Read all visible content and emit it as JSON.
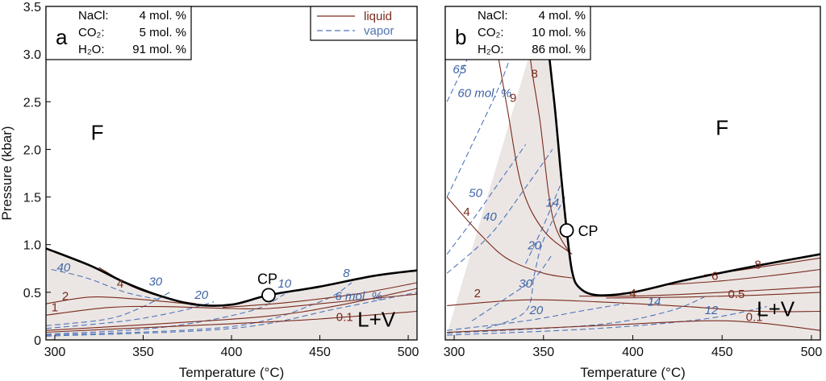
{
  "colors": {
    "liquid": "#7a2a1c",
    "vapor": "#4f74b8",
    "phase_boundary": "#000000",
    "two_phase_fill": "#ebe6e4"
  },
  "chart_data": [
    {
      "type": "line",
      "panel_letter": "a",
      "ylabel": "Pressure (kbar)",
      "xlabel": "Temperature (°C)",
      "xlim": [
        295,
        505
      ],
      "ylim": [
        0,
        3.5
      ],
      "xticks": [
        "300",
        "350",
        "400",
        "450",
        "500"
      ],
      "yticks": [
        "0",
        "0.5",
        "1.0",
        "1.5",
        "2.0",
        "2.5",
        "3.0",
        "3.5"
      ],
      "composition": [
        {
          "name": "NaCl:",
          "value": "4 mol. %"
        },
        {
          "name": "CO₂:",
          "value": "5 mol. %"
        },
        {
          "name": "H₂O:",
          "value": "91 mol. %"
        }
      ],
      "legend": {
        "position": "top-right",
        "entries": [
          {
            "label": "liquid",
            "style": "solid"
          },
          {
            "label": "vapor",
            "style": "dashed"
          }
        ]
      },
      "regions": [
        {
          "label": "F",
          "x": 324,
          "y": 2.1
        },
        {
          "label": "L+V",
          "x": 482,
          "y": 0.14
        }
      ],
      "critical_point": {
        "label": "CP",
        "x": 421,
        "y": 0.47
      },
      "phase_boundary": [
        [
          295,
          0.96
        ],
        [
          320,
          0.78
        ],
        [
          340,
          0.6
        ],
        [
          360,
          0.46
        ],
        [
          380,
          0.37
        ],
        [
          400,
          0.37
        ],
        [
          421,
          0.47
        ],
        [
          450,
          0.56
        ],
        [
          480,
          0.67
        ],
        [
          505,
          0.73
        ]
      ],
      "liquid_isopleths": [
        {
          "label": "1",
          "label_at": [
            300,
            0.3
          ],
          "points": [
            [
              295,
              0.26
            ],
            [
              330,
              0.34
            ],
            [
              360,
              0.35
            ],
            [
              400,
              0.33
            ],
            [
              421,
              0.33
            ],
            [
              450,
              0.38
            ],
            [
              505,
              0.48
            ]
          ]
        },
        {
          "label": "2",
          "label_at": [
            306,
            0.42
          ],
          "points": [
            [
              295,
              0.38
            ],
            [
              320,
              0.45
            ],
            [
              345,
              0.43
            ],
            [
              375,
              0.38
            ]
          ]
        },
        {
          "label": "4",
          "label_at": [
            337,
            0.55
          ],
          "points": [
            [
              325,
              0.76
            ],
            [
              345,
              0.55
            ],
            [
              365,
              0.43
            ],
            [
              380,
              0.38
            ]
          ]
        },
        {
          "label": "0.1",
          "label_at": [
            464,
            0.2
          ],
          "points": [
            [
              295,
              0.08
            ],
            [
              340,
              0.12
            ],
            [
              400,
              0.17
            ],
            [
              450,
              0.22
            ],
            [
              505,
              0.3
            ]
          ]
        },
        {
          "label": "",
          "label_at": null,
          "points": [
            [
              295,
              0.1
            ],
            [
              360,
              0.17
            ],
            [
              421,
              0.25
            ],
            [
              460,
              0.36
            ],
            [
              505,
              0.54
            ]
          ]
        },
        {
          "label": "",
          "label_at": null,
          "points": [
            [
              395,
              0.34
            ],
            [
              430,
              0.39
            ],
            [
              470,
              0.48
            ],
            [
              505,
              0.6
            ]
          ]
        }
      ],
      "vapor_isopleths": [
        {
          "label": "40",
          "label_at": [
            305,
            0.72
          ],
          "points": [
            [
              298,
              0.74
            ],
            [
              318,
              0.65
            ],
            [
              340,
              0.5
            ],
            [
              360,
              0.42
            ]
          ]
        },
        {
          "label": "30",
          "label_at": [
            357,
            0.57
          ],
          "points": [
            [
              295,
              0.15
            ],
            [
              330,
              0.22
            ],
            [
              350,
              0.35
            ],
            [
              365,
              0.5
            ]
          ]
        },
        {
          "label": "20",
          "label_at": [
            383,
            0.43
          ],
          "points": [
            [
              295,
              0.12
            ],
            [
              340,
              0.2
            ],
            [
              370,
              0.3
            ],
            [
              390,
              0.4
            ]
          ]
        },
        {
          "label": "10",
          "label_at": [
            430,
            0.55
          ],
          "points": [
            [
              295,
              0.06
            ],
            [
              360,
              0.13
            ],
            [
              410,
              0.3
            ],
            [
              430,
              0.48
            ]
          ]
        },
        {
          "label": "8",
          "label_at": [
            465,
            0.66
          ],
          "points": [
            [
              295,
              0.05
            ],
            [
              400,
              0.14
            ],
            [
              450,
              0.4
            ],
            [
              468,
              0.6
            ]
          ]
        },
        {
          "label": "6 mol. %",
          "label_at": [
            472,
            0.42
          ],
          "points": [
            [
              295,
              0.04
            ],
            [
              400,
              0.12
            ],
            [
              460,
              0.33
            ],
            [
              505,
              0.5
            ]
          ]
        }
      ]
    },
    {
      "type": "line",
      "panel_letter": "b",
      "ylabel": "",
      "xlabel": "Temperature (°C)",
      "xlim": [
        295,
        505
      ],
      "ylim": [
        0,
        3.5
      ],
      "xticks": [
        "300",
        "350",
        "400",
        "450",
        "500"
      ],
      "yticks": [],
      "composition": [
        {
          "name": "NaCl:",
          "value": "4 mol. %"
        },
        {
          "name": "CO₂:",
          "value": "10 mol. %"
        },
        {
          "name": "H₂O:",
          "value": "86 mol. %"
        }
      ],
      "legend": null,
      "regions": [
        {
          "label": "F",
          "x": 450,
          "y": 2.15
        },
        {
          "label": "L+V",
          "x": 480,
          "y": 0.25
        }
      ],
      "critical_point": {
        "label": "CP",
        "x": 363,
        "y": 1.15
      },
      "phase_boundary": [
        [
          350,
          3.5
        ],
        [
          356,
          2.5
        ],
        [
          360,
          1.7
        ],
        [
          363,
          1.15
        ],
        [
          366,
          0.72
        ],
        [
          370,
          0.55
        ],
        [
          380,
          0.47
        ],
        [
          400,
          0.5
        ],
        [
          430,
          0.63
        ],
        [
          470,
          0.78
        ],
        [
          505,
          0.9
        ]
      ],
      "liquid_isopleths": [
        {
          "label": "8",
          "label_at": [
            345,
            2.75
          ],
          "points": [
            [
              340,
              3.5
            ],
            [
              343,
              2.9
            ],
            [
              348,
              2.3
            ],
            [
              355,
              1.3
            ],
            [
              365,
              0.9
            ]
          ]
        },
        {
          "label": "9",
          "label_at": [
            333,
            2.5
          ],
          "points": [
            [
              324,
              3.05
            ],
            [
              330,
              2.4
            ],
            [
              338,
              1.6
            ],
            [
              350,
              1.15
            ],
            [
              366,
              0.9
            ]
          ]
        },
        {
          "label": "4",
          "label_at": [
            307,
            1.3
          ],
          "points": [
            [
              296,
              1.5
            ],
            [
              315,
              1.1
            ],
            [
              330,
              0.85
            ],
            [
              350,
              0.7
            ],
            [
              366,
              0.65
            ]
          ]
        },
        {
          "label": "2",
          "label_at": [
            313,
            0.45
          ],
          "points": [
            [
              296,
              0.36
            ],
            [
              340,
              0.42
            ],
            [
              380,
              0.4
            ],
            [
              430,
              0.35
            ],
            [
              470,
              0.3
            ],
            [
              505,
              0.3
            ]
          ]
        },
        {
          "label": "0.1",
          "label_at": [
            468,
            0.2
          ],
          "points": [
            [
              296,
              0.08
            ],
            [
              380,
              0.15
            ],
            [
              440,
              0.2
            ],
            [
              470,
              0.18
            ],
            [
              505,
              0.1
            ]
          ]
        },
        {
          "label": "4",
          "label_at": [
            400,
            0.45
          ],
          "points": [
            [
              370,
              0.46
            ],
            [
              400,
              0.46
            ],
            [
              430,
              0.48
            ],
            [
              470,
              0.52
            ],
            [
              505,
              0.56
            ]
          ]
        },
        {
          "label": "0.5",
          "label_at": [
            458,
            0.44
          ],
          "points": [
            [
              385,
              0.44
            ],
            [
              430,
              0.45
            ],
            [
              470,
              0.47
            ],
            [
              505,
              0.5
            ]
          ]
        },
        {
          "label": "6",
          "label_at": [
            446,
            0.63
          ],
          "points": [
            [
              420,
              0.58
            ],
            [
              450,
              0.62
            ],
            [
              480,
              0.68
            ],
            [
              505,
              0.74
            ]
          ]
        },
        {
          "label": "8",
          "label_at": [
            470,
            0.75
          ],
          "points": [
            [
              440,
              0.68
            ],
            [
              470,
              0.76
            ],
            [
              505,
              0.86
            ]
          ]
        }
      ],
      "vapor_isopleths": [
        {
          "label": "65",
          "label_at": [
            303,
            2.8
          ],
          "points": [
            [
              296,
              2.5
            ],
            [
              310,
              3.05
            ],
            [
              322,
              3.5
            ]
          ]
        },
        {
          "label": "60 mol. %",
          "label_at": [
            317,
            2.55
          ],
          "points": [
            [
              296,
              1.5
            ],
            [
              310,
              2.05
            ],
            [
              325,
              2.65
            ],
            [
              332,
              3.0
            ]
          ]
        },
        {
          "label": "50",
          "label_at": [
            312,
            1.5
          ],
          "points": [
            [
              296,
              0.9
            ],
            [
              310,
              1.25
            ],
            [
              325,
              1.65
            ],
            [
              340,
              2.05
            ]
          ]
        },
        {
          "label": "40",
          "label_at": [
            320,
            1.25
          ],
          "points": [
            [
              296,
              0.7
            ],
            [
              320,
              1.1
            ],
            [
              340,
              1.6
            ],
            [
              355,
              2.0
            ]
          ]
        },
        {
          "label": "30",
          "label_at": [
            340,
            0.55
          ],
          "points": [
            [
              310,
              0.2
            ],
            [
              330,
              0.45
            ],
            [
              345,
              0.65
            ],
            [
              355,
              0.9
            ]
          ]
        },
        {
          "label": "20",
          "label_at": [
            345,
            0.95
          ],
          "points": [
            [
              318,
              0.12
            ],
            [
              340,
              0.3
            ],
            [
              345,
              0.7
            ],
            [
              350,
              1.05
            ],
            [
              362,
              1.5
            ]
          ]
        },
        {
          "label": "20",
          "label_at": [
            346,
            0.27
          ],
          "points": [
            [
              296,
              0.1
            ],
            [
              340,
              0.2
            ],
            [
              370,
              0.3
            ],
            [
              395,
              0.38
            ]
          ]
        },
        {
          "label": "14",
          "label_at": [
            355,
            1.4
          ],
          "points": [
            [
              340,
              0.8
            ],
            [
              350,
              1.2
            ],
            [
              360,
              1.65
            ]
          ]
        },
        {
          "label": "14",
          "label_at": [
            412,
            0.36
          ],
          "points": [
            [
              296,
              0.07
            ],
            [
              380,
              0.16
            ],
            [
              420,
              0.3
            ],
            [
              440,
              0.45
            ]
          ]
        },
        {
          "label": "12",
          "label_at": [
            444,
            0.27
          ],
          "points": [
            [
              296,
              0.05
            ],
            [
              380,
              0.12
            ],
            [
              440,
              0.22
            ],
            [
              475,
              0.35
            ]
          ]
        }
      ]
    }
  ]
}
